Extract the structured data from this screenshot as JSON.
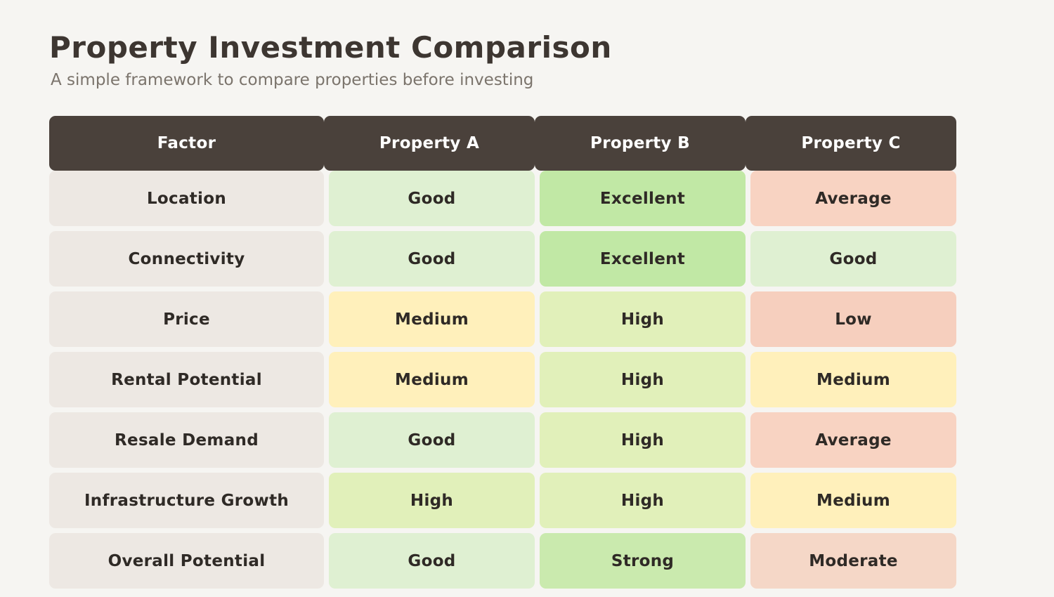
{
  "title": "Property Investment Comparison",
  "subtitle": "A simple framework to compare properties before investing",
  "table": {
    "headers": [
      "Factor",
      "Property A",
      "Property B",
      "Property C"
    ],
    "rows": [
      {
        "factor": "Location",
        "values": [
          "Good",
          "Excellent",
          "Average"
        ]
      },
      {
        "factor": "Connectivity",
        "values": [
          "Good",
          "Excellent",
          "Good"
        ]
      },
      {
        "factor": "Price",
        "values": [
          "Medium",
          "High",
          "Low"
        ]
      },
      {
        "factor": "Rental Potential",
        "values": [
          "Medium",
          "High",
          "Medium"
        ]
      },
      {
        "factor": "Resale Demand",
        "values": [
          "Good",
          "High",
          "Average"
        ]
      },
      {
        "factor": "Infrastructure Growth",
        "values": [
          "High",
          "High",
          "Medium"
        ]
      },
      {
        "factor": "Overall Potential",
        "values": [
          "Good",
          "Strong",
          "Moderate"
        ]
      }
    ]
  },
  "colors": {
    "page_background": "#f6f5f2",
    "header_fill": "#4a413b",
    "header_text": "#ffffff",
    "factor_fill": "#ede8e3",
    "cell_text": "#2f2a26",
    "title_text": "#3d3631",
    "subtitle_text": "#7b746c"
  },
  "rating_colors": {
    "Good": "#dff0d2",
    "Excellent": "#c1e8a5",
    "Strong": "#caeaae",
    "High": "#e1f0ba",
    "Medium": "#fff0bb",
    "Average": "#f8d3c2",
    "Low": "#f6cfbe",
    "Moderate": "#f5d7c7"
  }
}
